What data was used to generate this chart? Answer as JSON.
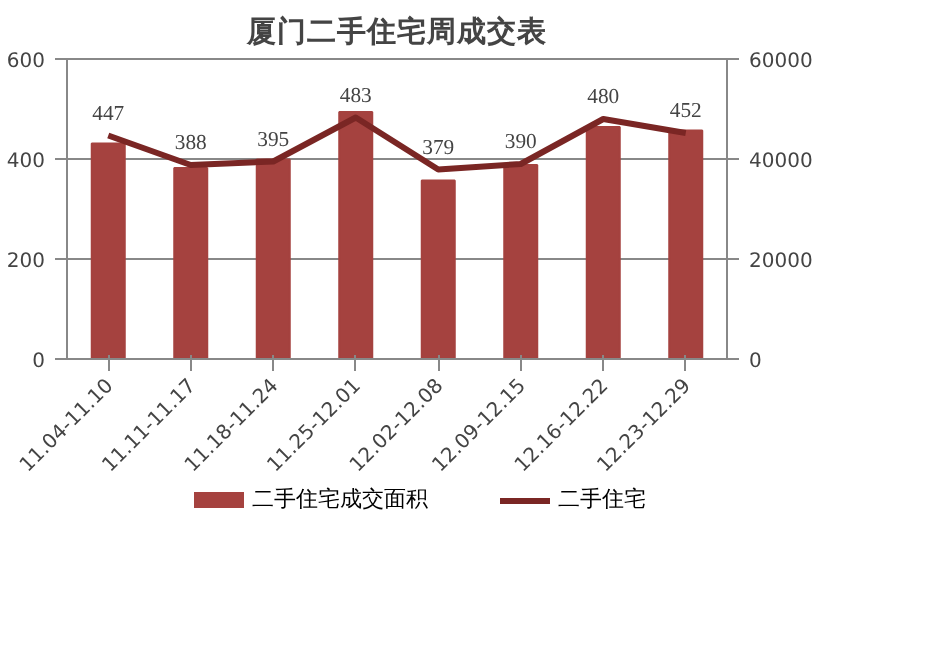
{
  "chart_data": {
    "type": "bar",
    "title": "厦门二手住宅周成交表",
    "categories": [
      "11.04-11.10",
      "11.11-11.17",
      "11.18-11.24",
      "11.25-12.01",
      "12.02-12.08",
      "12.09-12.15",
      "12.16-12.22",
      "12.23-12.29"
    ],
    "series": [
      {
        "name": "二手住宅成交面积",
        "axis": "y2",
        "color": "#a5423f",
        "values": [
          43100,
          38200,
          39900,
          49400,
          35700,
          38800,
          46400,
          45700
        ]
      },
      {
        "name": "二手住宅",
        "type": "line",
        "axis": "y",
        "color": "#7a2624",
        "data_labels": true,
        "values": [
          447,
          388,
          395,
          483,
          379,
          390,
          480,
          452
        ]
      }
    ],
    "ylim": [
      0,
      600
    ],
    "yticks": [
      0,
      200,
      400,
      600
    ],
    "y2lim": [
      0,
      60000
    ],
    "y2ticks": [
      0,
      20000,
      40000,
      60000
    ],
    "grid": "y",
    "legend": "bottom"
  }
}
